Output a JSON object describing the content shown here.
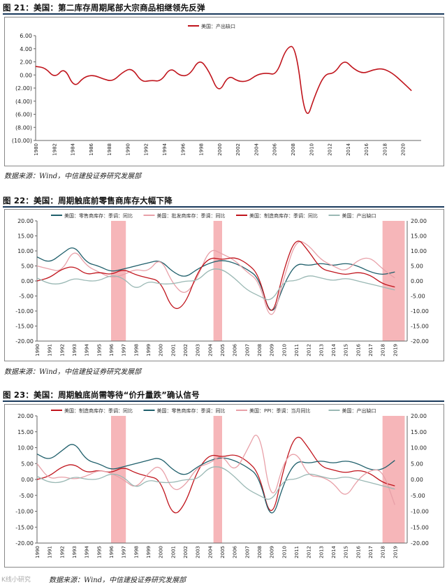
{
  "figures": [
    {
      "title": "图 21：美国：第二库存周期尾部大宗商品相继领先反弹",
      "source": "数据来源：Wind，中信建投证券研究发展部"
    },
    {
      "title": "图 22：美国：周期触底前零售商库存大幅下降",
      "source": "数据来源：Wind，中信建投证券研究发展部"
    },
    {
      "title": "图 23：美国：周期触底尚需等待“价升量跌”确认信号",
      "source": "数据来源：Wind，中信建投证券研究发展部"
    }
  ],
  "watermark": "K线小研究",
  "chart_data": [
    {
      "type": "line",
      "legend_position": "top-center",
      "ylim": [
        -10,
        6
      ],
      "yticks": [
        "6.00",
        "4.00",
        "2.00",
        "0.00",
        "(2.00)",
        "(4.00)",
        "(6.00)",
        "(8.00)",
        "(10.00)"
      ],
      "x_range": [
        1980,
        2020
      ],
      "xticks": [
        "1980",
        "1982",
        "1984",
        "1986",
        "1988",
        "1990",
        "1992",
        "1994",
        "1996",
        "1998",
        "2000",
        "2002",
        "2004",
        "2006",
        "2008",
        "2010",
        "2012",
        "2014",
        "2016",
        "2018",
        "2020"
      ],
      "series": [
        {
          "name": "美国：产出缺口",
          "color": "#c0141c",
          "x": [
            1980,
            1981,
            1982,
            1983,
            1984,
            1985,
            1986,
            1987,
            1988,
            1989,
            1990,
            1991,
            1992,
            1993,
            1994,
            1995,
            1996,
            1997,
            1998,
            1999,
            2000,
            2001,
            2002,
            2003,
            2004,
            2005,
            2006,
            2007,
            2008,
            2009,
            2010,
            2011,
            2012,
            2013,
            2014,
            2015,
            2016,
            2017,
            2018,
            2019
          ],
          "values": [
            1.3,
            1.1,
            -0.5,
            1.2,
            -2.0,
            -0.3,
            0.0,
            -0.6,
            -1.0,
            0.4,
            1.1,
            -1.1,
            -0.8,
            -1.0,
            1.2,
            -0.2,
            0.0,
            2.5,
            0.6,
            -2.9,
            0.0,
            -1.0,
            -1.0,
            0.1,
            0.3,
            0.0,
            4.2,
            4.5,
            -7.5,
            -3.0,
            0.2,
            0.2,
            2.4,
            0.9,
            0.2,
            0.8,
            1.0,
            0.3,
            -1.0,
            -2.4
          ]
        }
      ]
    },
    {
      "type": "line",
      "legend_position": "top",
      "ylim": [
        -20,
        20
      ],
      "yticks": [
        "20.00",
        "15.00",
        "10.00",
        "5.00",
        "0.00",
        "-5.00",
        "-10.00",
        "-15.00",
        "-20.00"
      ],
      "x_range": [
        1990,
        2020
      ],
      "xticks": [
        "1990",
        "1991",
        "1992",
        "1993",
        "1994",
        "1995",
        "1996",
        "1997",
        "1998",
        "1999",
        "2000",
        "2001",
        "2002",
        "2003",
        "2004",
        "2005",
        "2006",
        "2007",
        "2008",
        "2009",
        "2010",
        "2011",
        "2012",
        "2013",
        "2014",
        "2015",
        "2016",
        "2017",
        "2018",
        "2019"
      ],
      "shaded": [
        [
          1996.0,
          1997.2
        ],
        [
          2004.3,
          2005.0
        ],
        [
          2018.0,
          2019.8
        ]
      ],
      "series": [
        {
          "name": "美国：零售商库存：季调：同比",
          "color": "#1f5f6b",
          "x": [
            1990,
            1991,
            1992,
            1993,
            1994,
            1995,
            1996,
            1997,
            1998,
            1999,
            2000,
            2001,
            2002,
            2003,
            2004,
            2005,
            2006,
            2007,
            2008,
            2009,
            2010,
            2011,
            2012,
            2013,
            2014,
            2015,
            2016,
            2017,
            2018,
            2019
          ],
          "values": [
            8.0,
            6.0,
            9.0,
            12.0,
            6.0,
            5.0,
            3.0,
            4.0,
            5.0,
            6.0,
            7.0,
            3.0,
            1.0,
            4.0,
            6.0,
            7.0,
            6.0,
            4.0,
            1.0,
            -13.0,
            -1.0,
            6.0,
            5.0,
            6.0,
            5.0,
            6.0,
            5.0,
            3.0,
            2.0,
            3.0
          ]
        },
        {
          "name": "美国：批发商库存：季调：同比",
          "color": "#e8a0a8",
          "x": [
            1990,
            1991,
            1992,
            1993,
            1994,
            1995,
            1996,
            1997,
            1998,
            1999,
            2000,
            2001,
            2002,
            2003,
            2004,
            2005,
            2006,
            2007,
            2008,
            2009,
            2010,
            2011,
            2012,
            2013,
            2014,
            2015,
            2016,
            2017,
            2018,
            2019
          ],
          "values": [
            5.0,
            4.0,
            3.0,
            11.0,
            5.0,
            3.0,
            1.0,
            2.0,
            4.0,
            3.0,
            8.0,
            -1.0,
            -5.0,
            1.0,
            11.0,
            9.0,
            7.0,
            3.0,
            0.0,
            -15.0,
            1.0,
            14.0,
            12.0,
            7.0,
            5.0,
            3.0,
            7.0,
            8.0,
            4.0,
            1.0
          ]
        },
        {
          "name": "美国：制造商库存：季调：同比",
          "color": "#c0141c",
          "x": [
            1990,
            1991,
            1992,
            1993,
            1994,
            1995,
            1996,
            1997,
            1998,
            1999,
            2000,
            2001,
            2002,
            2003,
            2004,
            2005,
            2006,
            2007,
            2008,
            2009,
            2010,
            2011,
            2012,
            2013,
            2014,
            2015,
            2016,
            2017,
            2018,
            2019
          ],
          "values": [
            0.0,
            1.0,
            4.0,
            5.0,
            2.0,
            3.0,
            2.0,
            4.0,
            2.0,
            1.0,
            0.0,
            -10.0,
            -8.0,
            3.0,
            8.0,
            7.0,
            8.0,
            6.0,
            2.0,
            -14.0,
            4.0,
            15.0,
            10.0,
            4.0,
            3.0,
            2.0,
            3.0,
            2.0,
            -1.0,
            -2.0
          ]
        },
        {
          "name": "美国：产出缺口",
          "color": "#9ab8b4",
          "x": [
            1990,
            1991,
            1992,
            1993,
            1994,
            1995,
            1996,
            1997,
            1998,
            1999,
            2000,
            2001,
            2002,
            2003,
            2004,
            2005,
            2006,
            2007,
            2008,
            2009,
            2010,
            2011,
            2012,
            2013,
            2014,
            2015,
            2016,
            2017,
            2018,
            2019
          ],
          "values": [
            1.0,
            -1.0,
            -1.0,
            1.0,
            0.0,
            0.0,
            2.0,
            1.0,
            -3.0,
            0.0,
            -1.0,
            -1.0,
            0.0,
            0.0,
            4.0,
            4.0,
            1.0,
            -3.0,
            -5.0,
            -7.0,
            0.0,
            0.0,
            2.0,
            1.0,
            0.0,
            1.0,
            0.0,
            -1.0,
            -2.0,
            -3.0
          ]
        }
      ]
    },
    {
      "type": "line",
      "legend_position": "top",
      "ylim": [
        -20,
        20
      ],
      "yticks": [
        "20.00",
        "15.00",
        "10.00",
        "5.00",
        "0.00",
        "-5.00",
        "-10.00",
        "-15.00",
        "-20.00"
      ],
      "x_range": [
        1990,
        2020
      ],
      "xticks": [
        "1990",
        "1991",
        "1992",
        "1993",
        "1994",
        "1995",
        "1996",
        "1997",
        "1998",
        "1999",
        "2000",
        "2001",
        "2002",
        "2003",
        "2004",
        "2005",
        "2006",
        "2007",
        "2008",
        "2009",
        "2010",
        "2011",
        "2012",
        "2013",
        "2014",
        "2015",
        "2016",
        "2017",
        "2018",
        "2019"
      ],
      "shaded": [
        [
          1996.0,
          1997.2
        ],
        [
          2004.3,
          2005.0
        ],
        [
          2018.0,
          2019.8
        ]
      ],
      "series": [
        {
          "name": "美国：制造商库存：季调：同比",
          "color": "#c0141c",
          "x": [
            1990,
            1991,
            1992,
            1993,
            1994,
            1995,
            1996,
            1997,
            1998,
            1999,
            2000,
            2001,
            2002,
            2003,
            2004,
            2005,
            2006,
            2007,
            2008,
            2009,
            2010,
            2011,
            2012,
            2013,
            2014,
            2015,
            2016,
            2017,
            2018,
            2019
          ],
          "values": [
            0.0,
            1.0,
            4.0,
            5.0,
            2.0,
            3.0,
            2.0,
            4.0,
            2.0,
            1.0,
            0.0,
            -12.0,
            -8.0,
            3.0,
            8.0,
            7.0,
            8.0,
            6.0,
            2.0,
            -14.0,
            4.0,
            15.0,
            10.0,
            4.0,
            3.0,
            2.0,
            3.0,
            2.0,
            -1.0,
            -2.0
          ]
        },
        {
          "name": "美国：零售商库存：季调：同比",
          "color": "#1f5f6b",
          "x": [
            1990,
            1991,
            1992,
            1993,
            1994,
            1995,
            1996,
            1997,
            1998,
            1999,
            2000,
            2001,
            2002,
            2003,
            2004,
            2005,
            2006,
            2007,
            2008,
            2009,
            2010,
            2011,
            2012,
            2013,
            2014,
            2015,
            2016,
            2017,
            2018,
            2019
          ],
          "values": [
            8.0,
            6.0,
            9.0,
            12.0,
            6.0,
            5.0,
            3.0,
            4.0,
            5.0,
            6.0,
            7.0,
            3.0,
            1.0,
            4.0,
            6.0,
            7.0,
            6.0,
            4.0,
            1.0,
            -14.0,
            -1.0,
            6.0,
            5.0,
            6.0,
            5.0,
            6.0,
            5.0,
            3.0,
            3.0,
            6.0
          ]
        },
        {
          "name": "美国：PPI：季调：当月同比",
          "color": "#e8a0a8",
          "x": [
            1990,
            1991,
            1992,
            1993,
            1994,
            1995,
            1996,
            1997,
            1998,
            1999,
            2000,
            2001,
            2002,
            2003,
            2004,
            2005,
            2006,
            2007,
            2008,
            2009,
            2010,
            2011,
            2012,
            2013,
            2014,
            2015,
            2016,
            2017,
            2018,
            2019
          ],
          "values": [
            5.0,
            0.0,
            1.0,
            0.0,
            1.0,
            3.0,
            2.0,
            0.0,
            -3.0,
            2.0,
            5.0,
            -4.0,
            -2.0,
            4.0,
            5.0,
            8.0,
            2.0,
            9.0,
            17.0,
            -9.0,
            6.0,
            9.0,
            1.0,
            1.0,
            -1.0,
            -6.0,
            0.0,
            3.0,
            3.0,
            -8.0
          ]
        },
        {
          "name": "美国：产出缺口",
          "color": "#9ab8b4",
          "x": [
            1990,
            1991,
            1992,
            1993,
            1994,
            1995,
            1996,
            1997,
            1998,
            1999,
            2000,
            2001,
            2002,
            2003,
            2004,
            2005,
            2006,
            2007,
            2008,
            2009,
            2010,
            2011,
            2012,
            2013,
            2014,
            2015,
            2016,
            2017,
            2018,
            2019
          ],
          "values": [
            1.0,
            -1.0,
            -1.0,
            1.0,
            0.0,
            0.0,
            2.0,
            1.0,
            -3.0,
            0.0,
            -1.0,
            -1.0,
            0.0,
            0.0,
            4.0,
            4.0,
            1.0,
            -3.0,
            -5.0,
            -7.0,
            0.0,
            0.0,
            2.0,
            1.0,
            0.0,
            1.0,
            0.0,
            -1.0,
            -2.0,
            -3.0
          ]
        }
      ]
    }
  ]
}
